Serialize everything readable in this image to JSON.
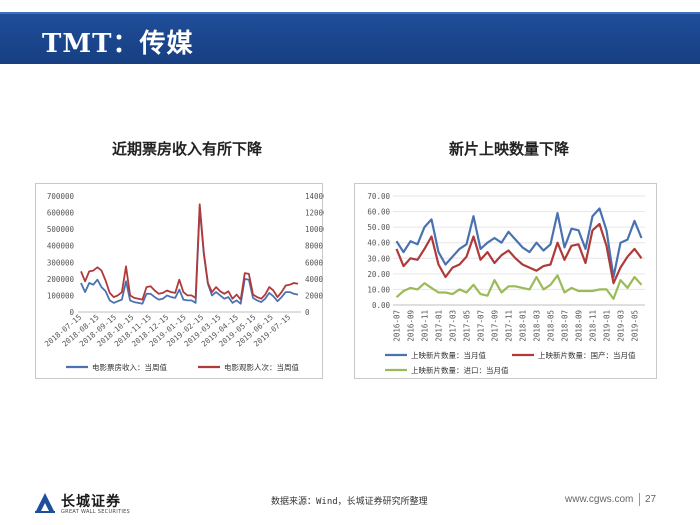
{
  "header": {
    "title": "TMT：传媒"
  },
  "colors": {
    "series_blue": "#4a72b0",
    "series_red": "#b03a3a",
    "series_green": "#9bbb59",
    "header_blue": "#1f4e9a"
  },
  "chart_data": [
    {
      "type": "line",
      "title": "近期票房收入有所下降",
      "x_tick_labels": [
        "2018-07-15",
        "2018-08-15",
        "2018-09-15",
        "2018-10-15",
        "2018-11-15",
        "2018-12-15",
        "2019-01-15",
        "2019-02-15",
        "2019-03-15",
        "2019-04-15",
        "2019-05-15",
        "2019-06-15",
        "2019-07-15"
      ],
      "y_left_ticks": [
        "0",
        "100000",
        "200000",
        "300000",
        "400000",
        "500000",
        "600000",
        "700000"
      ],
      "y_right_ticks": [
        "0",
        "2000",
        "4000",
        "6000",
        "8000",
        "10000",
        "12000",
        "14000"
      ],
      "ylim_left": [
        0,
        700000
      ],
      "ylim_right": [
        0,
        14000
      ],
      "legend_position": "bottom",
      "series": [
        {
          "name": "电影票房收入：当周值",
          "axis": "left",
          "color": "#4a72b0",
          "values": [
            175000,
            120000,
            175000,
            165000,
            195000,
            150000,
            125000,
            70000,
            55000,
            65000,
            75000,
            185000,
            70000,
            60000,
            55000,
            50000,
            110000,
            110000,
            90000,
            75000,
            80000,
            100000,
            90000,
            85000,
            135000,
            75000,
            70000,
            70000,
            55000,
            630000,
            350000,
            170000,
            100000,
            120000,
            100000,
            80000,
            90000,
            55000,
            70000,
            50000,
            200000,
            195000,
            85000,
            70000,
            60000,
            80000,
            115000,
            95000,
            65000,
            90000,
            120000,
            120000,
            110000,
            105000
          ]
        },
        {
          "name": "电影观影人次：当周值",
          "axis": "right",
          "color": "#b03a3a",
          "values": [
            4900,
            3700,
            4900,
            5000,
            5400,
            5000,
            3800,
            2300,
            1800,
            2000,
            2400,
            5500,
            2000,
            1700,
            1600,
            1500,
            3000,
            3100,
            2600,
            2200,
            2300,
            2600,
            2400,
            2300,
            3900,
            2400,
            2000,
            2000,
            1700,
            13000,
            7200,
            3500,
            2400,
            3000,
            2500,
            2200,
            2500,
            1600,
            2100,
            1500,
            4700,
            4600,
            2100,
            1800,
            1600,
            2100,
            3000,
            2600,
            1800,
            2400,
            3200,
            3300,
            3500,
            3400
          ]
        }
      ]
    },
    {
      "type": "line",
      "title": "新片上映数量下降",
      "x_tick_labels": [
        "2016-07",
        "2016-09",
        "2016-11",
        "2017-01",
        "2017-03",
        "2017-05",
        "2017-07",
        "2017-09",
        "2017-11",
        "2018-01",
        "2018-03",
        "2018-05",
        "2018-07",
        "2018-09",
        "2018-11",
        "2019-01",
        "2019-03",
        "2019-05"
      ],
      "x_points": [
        "2016-07",
        "2016-08",
        "2016-09",
        "2016-10",
        "2016-11",
        "2016-12",
        "2017-01",
        "2017-02",
        "2017-03",
        "2017-04",
        "2017-05",
        "2017-06",
        "2017-07",
        "2017-08",
        "2017-09",
        "2017-10",
        "2017-11",
        "2017-12",
        "2018-01",
        "2018-02",
        "2018-03",
        "2018-04",
        "2018-05",
        "2018-06",
        "2018-07",
        "2018-08",
        "2018-09",
        "2018-10",
        "2018-11",
        "2018-12",
        "2019-01",
        "2019-02",
        "2019-03",
        "2019-04",
        "2019-05",
        "2019-06"
      ],
      "y_ticks": [
        "0.00",
        "10.00",
        "20.00",
        "30.00",
        "40.00",
        "50.00",
        "60.00",
        "70.00"
      ],
      "ylim": [
        0,
        70
      ],
      "legend_position": "bottom",
      "series": [
        {
          "name": "上映新片数量：当月值",
          "color": "#4a72b0",
          "values": [
            41,
            34,
            41,
            39,
            50,
            55,
            34,
            26,
            31,
            36,
            39,
            57,
            36,
            40,
            43,
            40,
            47,
            42,
            37,
            34,
            40,
            35,
            39,
            59,
            37,
            49,
            48,
            36,
            57,
            62,
            48,
            18,
            40,
            42,
            54,
            43
          ]
        },
        {
          "name": "上映新片数量：国产：当月值",
          "color": "#b03a3a",
          "values": [
            36,
            25,
            30,
            29,
            36,
            44,
            26,
            18,
            24,
            26,
            31,
            44,
            29,
            34,
            27,
            32,
            35,
            30,
            26,
            24,
            22,
            25,
            26,
            40,
            29,
            38,
            39,
            27,
            48,
            52,
            38,
            14,
            24,
            31,
            36,
            30
          ]
        },
        {
          "name": "上映新片数量：进口：当月值",
          "color": "#9bbb59",
          "values": [
            5,
            9,
            11,
            10,
            14,
            11,
            8,
            8,
            7,
            10,
            8,
            13,
            7,
            6,
            16,
            8,
            12,
            12,
            11,
            10,
            18,
            10,
            13,
            19,
            8,
            11,
            9,
            9,
            9,
            10,
            10,
            4,
            16,
            11,
            18,
            13
          ]
        }
      ]
    }
  ],
  "footer": {
    "company_cn": "长城证券",
    "company_en": "GREAT WALL SECURITIES",
    "source": "数据来源：Wind，长城证券研究所整理",
    "url": "www.cgws.com",
    "page": "27"
  }
}
